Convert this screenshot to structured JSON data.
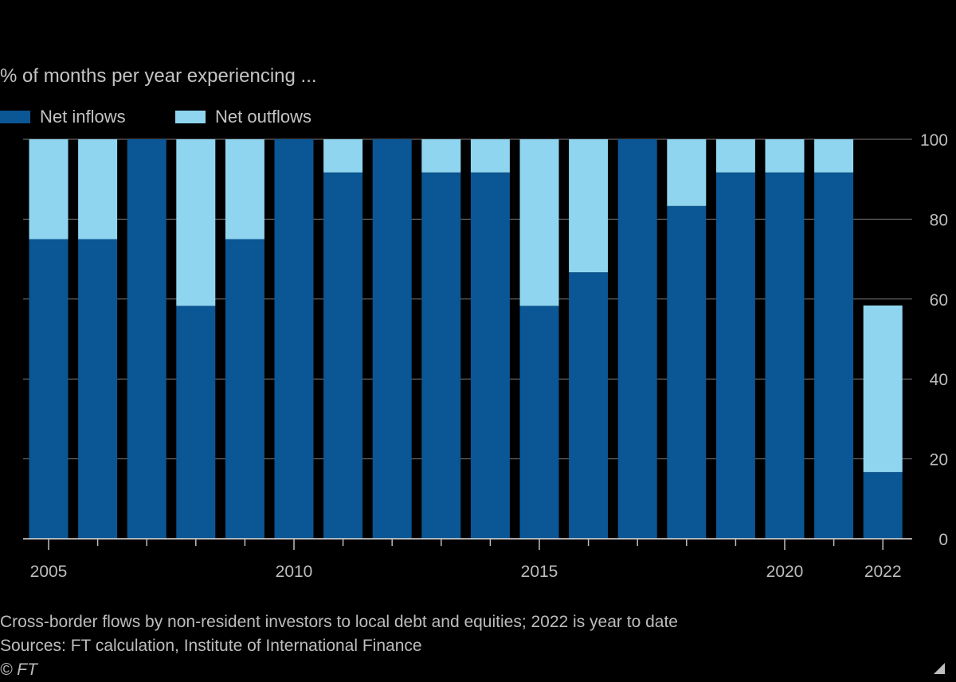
{
  "chart_data": {
    "type": "bar",
    "stacked": true,
    "subtitle": "% of months per year experiencing ...",
    "categories": [
      "2005",
      "2006",
      "2007",
      "2008",
      "2009",
      "2010",
      "2011",
      "2012",
      "2013",
      "2014",
      "2015",
      "2016",
      "2017",
      "2018",
      "2019",
      "2020",
      "2021",
      "2022"
    ],
    "series": [
      {
        "name": "Net inflows",
        "color": "#0b5694",
        "values": [
          75,
          75,
          100,
          58.3,
          75,
          100,
          91.7,
          100,
          91.7,
          91.7,
          58.3,
          66.7,
          100,
          83.3,
          91.7,
          91.7,
          91.7,
          16.7
        ]
      },
      {
        "name": "Net outflows",
        "color": "#8fd5ef",
        "values": [
          25,
          25,
          0,
          41.7,
          25,
          0,
          8.3,
          0,
          8.3,
          8.3,
          41.7,
          33.3,
          0,
          16.7,
          8.3,
          8.3,
          8.3,
          41.7
        ]
      }
    ],
    "x_tick_labels": [
      "2005",
      "2010",
      "2015",
      "2020",
      "2022"
    ],
    "y_ticks": [
      0,
      20,
      40,
      60,
      80,
      100
    ],
    "ylim": [
      0,
      100
    ],
    "grid": true,
    "legend": "top-left",
    "y_axis_side": "right"
  },
  "footer": {
    "note": "Cross-border flows by non-resident investors to local debt and equities; 2022 is year to date",
    "source": "Sources: FT calculation, Institute of International Finance",
    "copyright": "© FT"
  }
}
